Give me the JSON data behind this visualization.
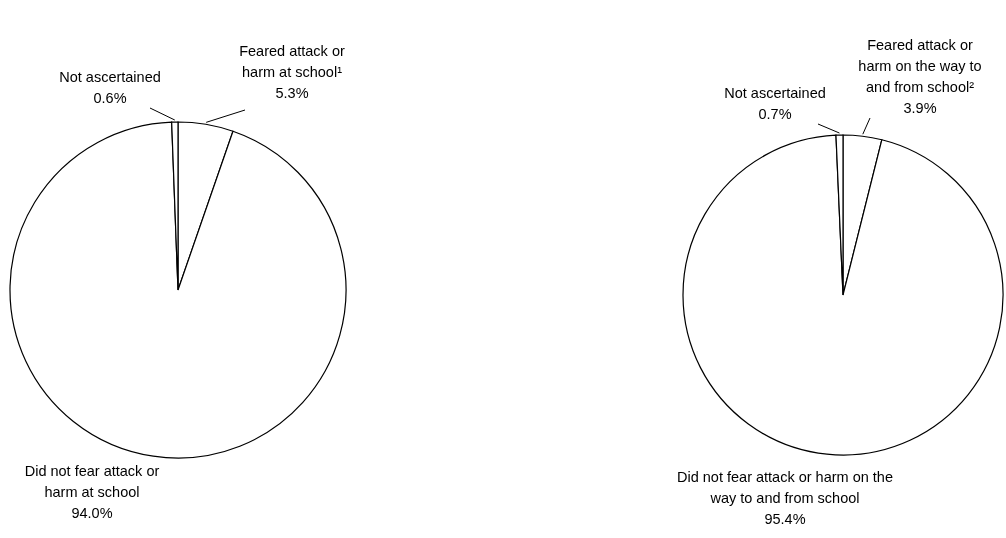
{
  "chart_data": [
    {
      "type": "pie",
      "categories": [
        "Feared attack or harm at school¹",
        "Did not fear attack or harm at school",
        "Not ascertained"
      ],
      "values": [
        5.3,
        94.0,
        0.6
      ],
      "value_labels": [
        "5.3%",
        "94.0%",
        "0.6%"
      ],
      "colors": [
        "#ffffff",
        "#ffffff",
        "#ffffff"
      ]
    },
    {
      "type": "pie",
      "categories": [
        "Feared attack or harm on the way to and from school²",
        "Did not fear attack or harm on the way to and from school",
        "Not ascertained"
      ],
      "values": [
        3.9,
        95.4,
        0.7
      ],
      "value_labels": [
        "3.9%",
        "95.4%",
        "0.7%"
      ],
      "colors": [
        "#ffffff",
        "#ffffff",
        "#ffffff"
      ]
    }
  ]
}
